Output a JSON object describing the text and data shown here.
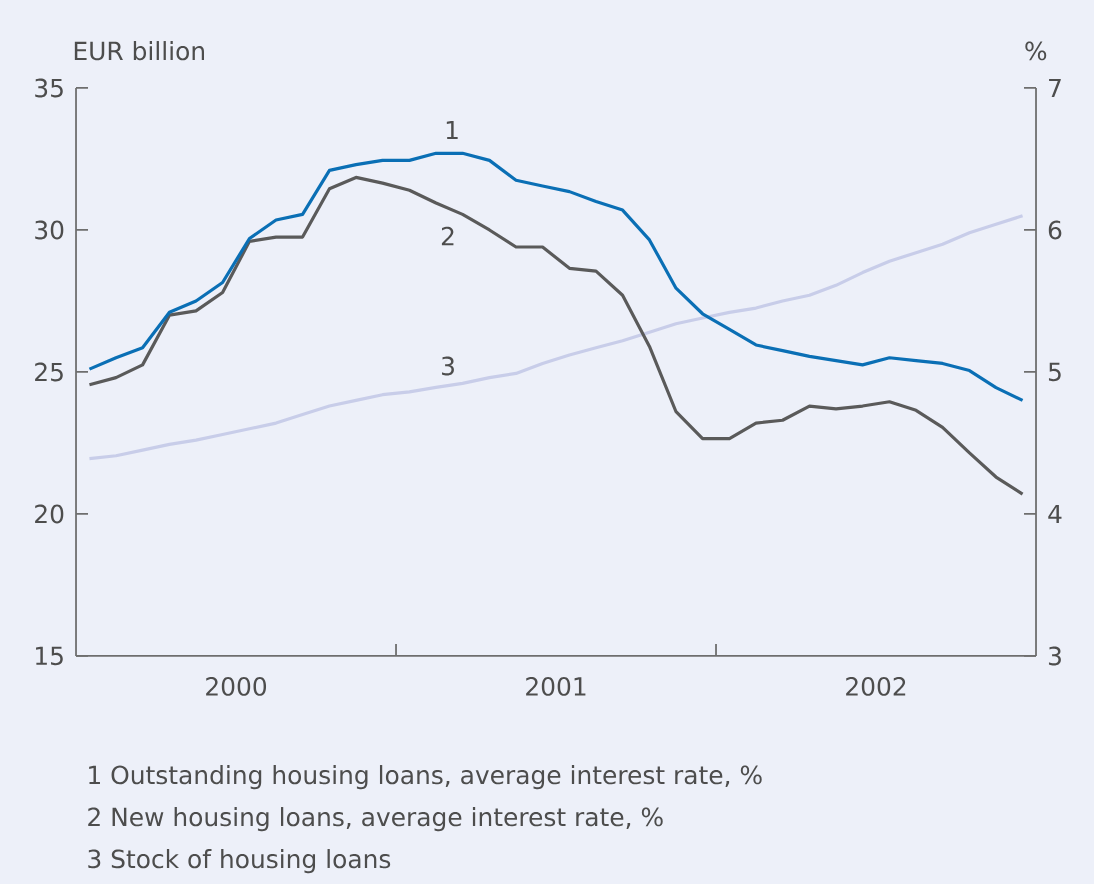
{
  "chart_data": {
    "type": "line",
    "ylabel": "EUR billion",
    "y2label": "%",
    "x": [
      2000.042,
      2000.125,
      2000.208,
      2000.292,
      2000.375,
      2000.458,
      2000.542,
      2000.625,
      2000.708,
      2000.792,
      2000.875,
      2000.958,
      2001.042,
      2001.125,
      2001.208,
      2001.292,
      2001.375,
      2001.458,
      2001.542,
      2001.625,
      2001.708,
      2001.792,
      2001.875,
      2001.958,
      2002.042,
      2002.125,
      2002.208,
      2002.292,
      2002.375,
      2002.458,
      2002.542,
      2002.625,
      2002.708,
      2002.792,
      2002.875,
      2002.958
    ],
    "xlim": [
      2000,
      2003
    ],
    "xticks": [
      {
        "value": 2000.5,
        "label": "2000"
      },
      {
        "value": 2001,
        "label": null
      },
      {
        "value": 2001.5,
        "label": "2001"
      },
      {
        "value": 2002,
        "label": null
      },
      {
        "value": 2002.5,
        "label": "2002"
      }
    ],
    "ylim": [
      15,
      35
    ],
    "yticks": [
      15,
      20,
      25,
      30,
      35
    ],
    "y2lim": [
      3,
      7
    ],
    "y2ticks": [
      3,
      4,
      5,
      6,
      7
    ],
    "series": [
      {
        "color": "#c8cde9",
        "values": [
          21.95,
          22.05,
          22.25,
          22.45,
          22.6,
          22.8,
          23.0,
          23.2,
          23.5,
          23.8,
          24.0,
          24.2,
          24.3,
          24.46,
          24.6,
          24.8,
          24.95,
          25.3,
          25.6,
          25.85,
          26.1,
          26.4,
          26.7,
          26.9,
          27.1,
          27.25,
          27.5,
          27.7,
          28.05,
          28.5,
          28.9,
          29.2,
          29.5,
          29.9,
          30.2,
          30.5
        ]
      },
      {
        "color": "#5a5a5a",
        "axis": "y2",
        "values": [
          4.91,
          4.96,
          5.05,
          5.4,
          5.43,
          5.56,
          5.92,
          5.95,
          5.95,
          6.29,
          6.37,
          6.33,
          6.28,
          6.19,
          6.11,
          6.0,
          5.88,
          5.88,
          5.73,
          5.71,
          5.54,
          5.18,
          4.72,
          4.53,
          4.53,
          4.64,
          4.66,
          4.76,
          4.74,
          4.76,
          4.79,
          4.73,
          4.61,
          4.43,
          4.26,
          4.14
        ]
      },
      {
        "color": "#0a6fb5",
        "axis": "y2",
        "values": [
          5.02,
          5.1,
          5.17,
          5.42,
          5.5,
          5.63,
          5.94,
          6.07,
          6.11,
          6.42,
          6.46,
          6.49,
          6.49,
          6.54,
          6.54,
          6.49,
          6.35,
          6.31,
          6.27,
          6.2,
          6.14,
          5.93,
          5.59,
          5.41,
          5.3,
          5.19,
          5.15,
          5.11,
          5.08,
          5.05,
          5.1,
          5.08,
          5.06,
          5.01,
          4.89,
          4.8
        ]
      }
    ],
    "annotations": [
      "1",
      "2",
      "3",
      "1  Outstanding housing loans, average interest rate, %",
      "2  New housing loans, average interest rate, %",
      "3  Stock of housing loans"
    ]
  }
}
